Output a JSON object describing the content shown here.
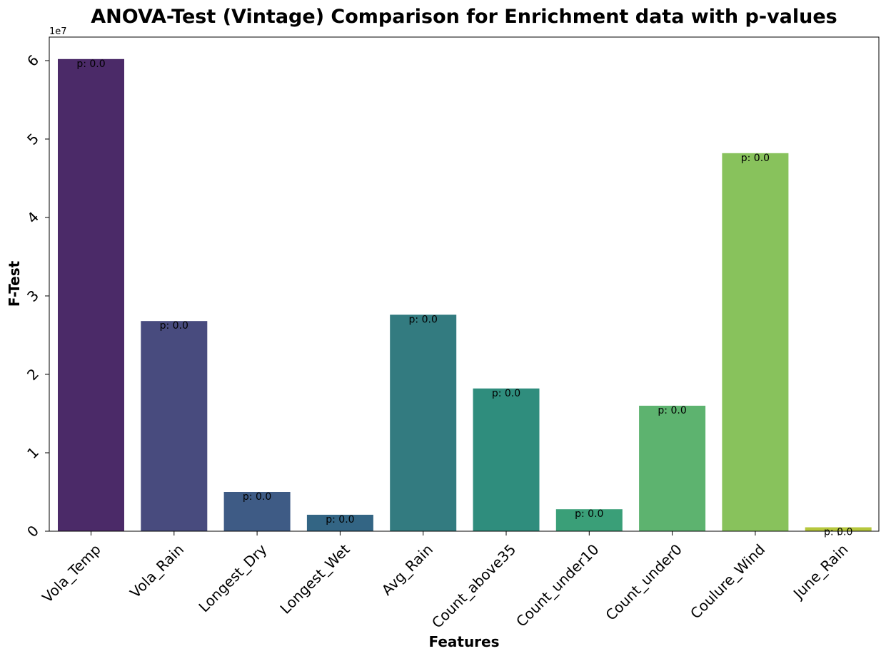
{
  "chart_data": {
    "type": "bar",
    "title": "ANOVA-Test (Vintage) Comparison for Enrichment data with p-values",
    "xlabel": "Features",
    "ylabel": "F-Test",
    "y_scale_label": "1e7",
    "ylim": [
      0,
      63000000
    ],
    "grid": false,
    "y_ticks": [
      {
        "value": 0,
        "label": "0"
      },
      {
        "value": 10000000,
        "label": "1"
      },
      {
        "value": 20000000,
        "label": "2"
      },
      {
        "value": 30000000,
        "label": "3"
      },
      {
        "value": 40000000,
        "label": "4"
      },
      {
        "value": 50000000,
        "label": "5"
      },
      {
        "value": 60000000,
        "label": "6"
      }
    ],
    "categories": [
      "Vola_Temp",
      "Vola_Rain",
      "Longest_Dry",
      "Longest_Wet",
      "Avg_Rain",
      "Count_above35",
      "Count_under10",
      "Count_under0",
      "Coulure_Wind",
      "June_Rain"
    ],
    "values": [
      60200000,
      26800000,
      5000000,
      2100000,
      27600000,
      18200000,
      2800000,
      16000000,
      48200000,
      500000
    ],
    "bar_labels": [
      "p: 0.0",
      "p: 0.0",
      "p: 0.0",
      "p: 0.0",
      "p: 0.0",
      "p: 0.0",
      "p: 0.0",
      "p: 0.0",
      "p: 0.0",
      "p: 0.0"
    ],
    "colors": [
      "#4b2a68",
      "#484b7e",
      "#3e5b85",
      "#336584",
      "#337b80",
      "#2f8d7d",
      "#3a9f78",
      "#5db36f",
      "#88c25c",
      "#b6c73d"
    ]
  }
}
